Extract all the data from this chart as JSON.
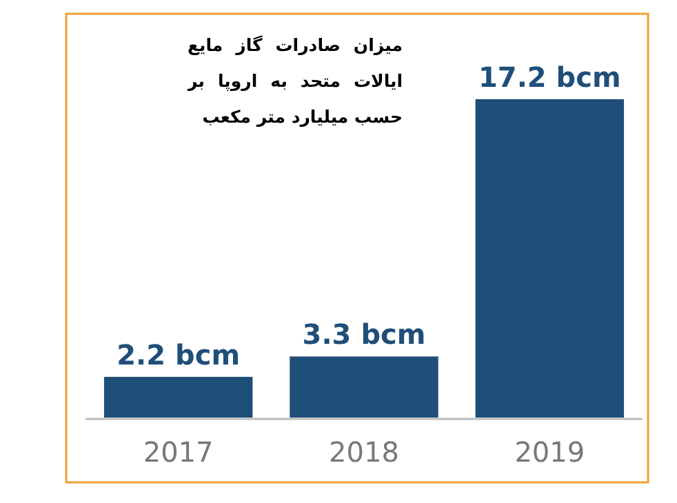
{
  "chart_data": {
    "type": "bar",
    "title": "میزان صادرات گاز مایع ایالات متحد به اروپا بر حسب میلیارد متر مکعب",
    "categories": [
      "2017",
      "2018",
      "2019"
    ],
    "values": [
      2.2,
      3.3,
      17.2
    ],
    "value_labels": [
      "2.2 bcm",
      "3.3 bcm",
      "17.2 bcm"
    ],
    "color": "#1f4e79"
  }
}
